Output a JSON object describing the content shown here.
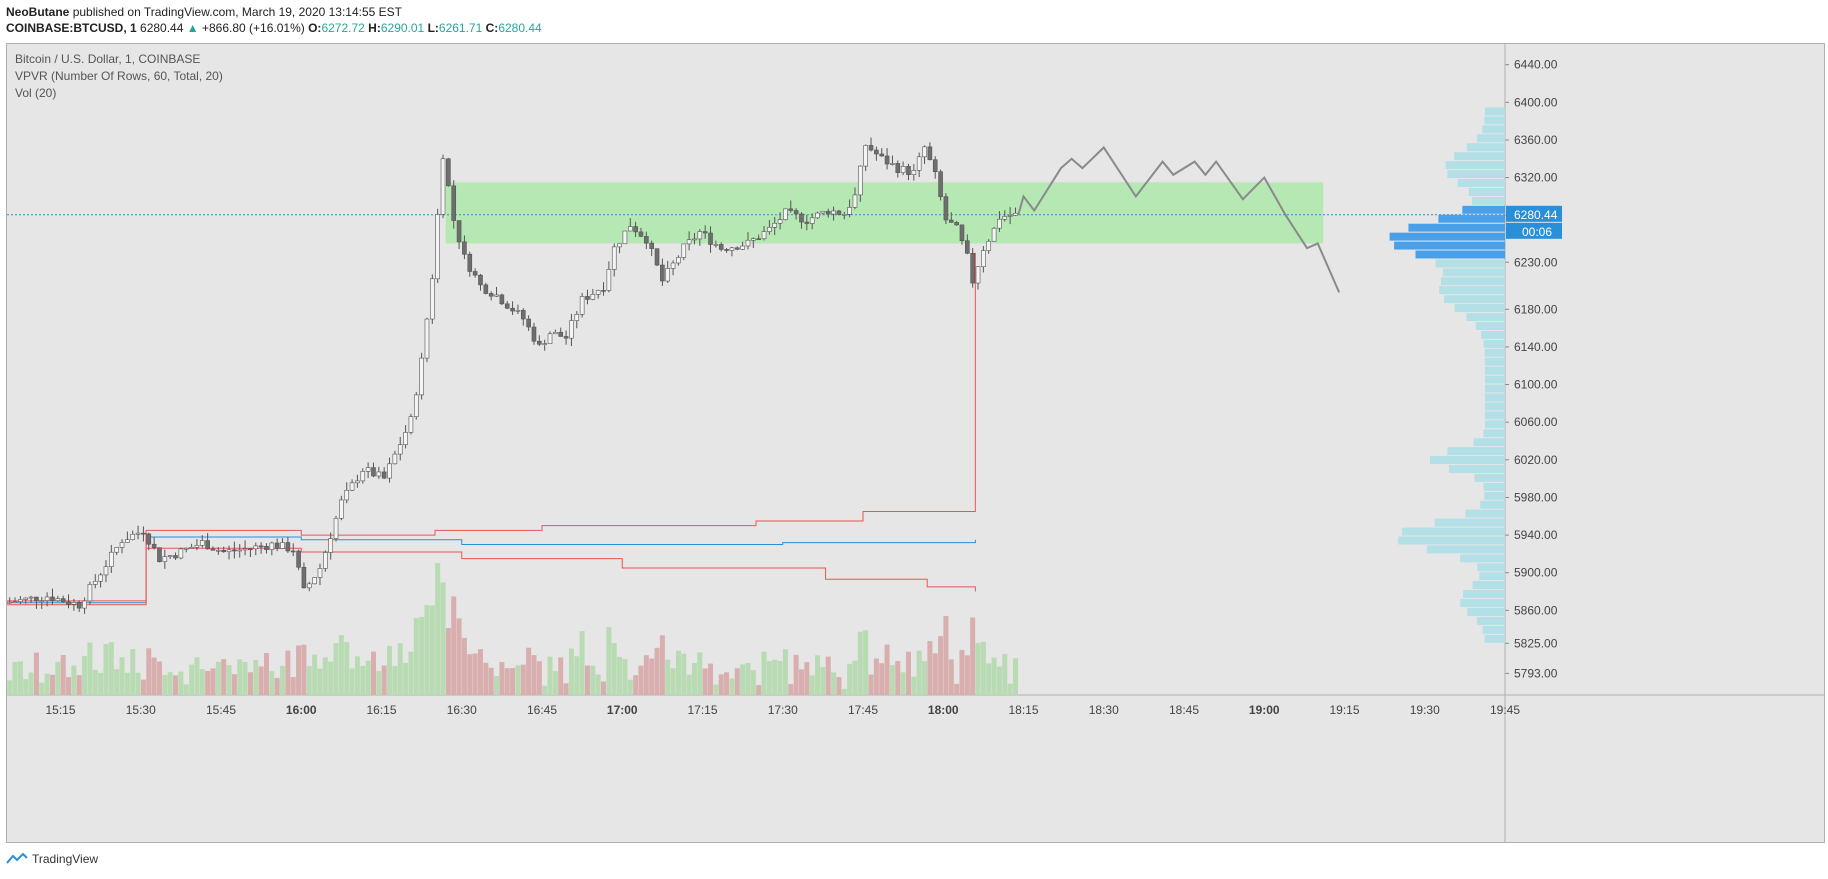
{
  "header": {
    "author": "NeoButane",
    "published_text": "published on TradingView.com, March 19, 2020 13:14:55 EST",
    "symbol": "COINBASE:BTCUSD, 1",
    "last": "6280.44",
    "change": "+866.80 (+16.01%)",
    "o_label": "O:",
    "o": "6272.72",
    "h_label": "H:",
    "h": "6290.01",
    "l_label": "L:",
    "l": "6261.71",
    "c_label": "C:",
    "c": "6280.44"
  },
  "legend": {
    "title": "Bitcoin / U.S. Dollar, 1, COINBASE",
    "indicator1": "VPVR (Number Of Rows, 60, Total, 20)",
    "indicator2": "Vol (20)"
  },
  "badges": {
    "price": "6280.44",
    "countdown": "00:06"
  },
  "footer": {
    "brand": "TradingView"
  },
  "colors": {
    "zone": "#b6e8b4",
    "path": "#8a8a8a",
    "vpvr": "#b3dfe7",
    "vpvr_hi": "#4aa0e8",
    "vol_up": "#b9dbb3",
    "vol_dn": "#d9aeae",
    "vwap": "#2a8fd9",
    "band": "#ef5353",
    "price_line": "#2a8fd9"
  },
  "chart_data": {
    "type": "candlestick",
    "title": "Bitcoin / U.S. Dollar, 1, COINBASE",
    "ylim": [
      5770,
      6462
    ],
    "y_ticks": [
      "6440.00",
      "6400.00",
      "6360.00",
      "6320.00",
      "6280.00",
      "6230.00",
      "6180.00",
      "6140.00",
      "6100.00",
      "6060.00",
      "6020.00",
      "5980.00",
      "5940.00",
      "5900.00",
      "5860.00",
      "5825.00",
      "5793.00"
    ],
    "x_ticks": [
      "15:15",
      "15:30",
      "15:45",
      "16:00",
      "16:15",
      "16:30",
      "16:45",
      "17:00",
      "17:15",
      "17:30",
      "17:45",
      "18:00",
      "18:15",
      "18:30",
      "18:45",
      "19:00",
      "19:15",
      "19:30",
      "19:45"
    ],
    "x_ticks_bold": [
      "16:00",
      "17:00",
      "18:00",
      "19:00"
    ],
    "time_start": "15:05",
    "time_end": "19:45",
    "last_price": 6280.44,
    "resistance_zone": {
      "from_time": "16:27",
      "to_time": "19:11",
      "low": 6250,
      "high": 6315
    },
    "projection_path": [
      [
        "18:14",
        6280
      ],
      [
        "18:15",
        6300
      ],
      [
        "18:17",
        6285
      ],
      [
        "18:22",
        6330
      ],
      [
        "18:24",
        6340
      ],
      [
        "18:26",
        6330
      ],
      [
        "18:30",
        6352
      ],
      [
        "18:36",
        6300
      ],
      [
        "18:41",
        6337
      ],
      [
        "18:43",
        6323
      ],
      [
        "18:47",
        6337
      ],
      [
        "18:49",
        6323
      ],
      [
        "18:51",
        6337
      ],
      [
        "18:56",
        6297
      ],
      [
        "19:00",
        6320
      ],
      [
        "19:04",
        6280
      ],
      [
        "19:08",
        6245
      ],
      [
        "19:10",
        6250
      ],
      [
        "19:14",
        6198
      ]
    ],
    "candle_waypoints": [
      [
        "15:05",
        5868
      ],
      [
        "15:13",
        5875
      ],
      [
        "15:19",
        5866
      ],
      [
        "15:23",
        5900
      ],
      [
        "15:27",
        5935
      ],
      [
        "15:31",
        5945
      ],
      [
        "15:34",
        5915
      ],
      [
        "15:37",
        5920
      ],
      [
        "15:42",
        5932
      ],
      [
        "15:46",
        5922
      ],
      [
        "15:50",
        5925
      ],
      [
        "15:55",
        5930
      ],
      [
        "15:59",
        5925
      ],
      [
        "16:01",
        5880
      ],
      [
        "16:04",
        5905
      ],
      [
        "16:08",
        5975
      ],
      [
        "16:12",
        6010
      ],
      [
        "16:16",
        6000
      ],
      [
        "16:18",
        6025
      ],
      [
        "16:21",
        6062
      ],
      [
        "16:23",
        6125
      ],
      [
        "16:25",
        6215
      ],
      [
        "16:27",
        6345
      ],
      [
        "16:29",
        6275
      ],
      [
        "16:31",
        6235
      ],
      [
        "16:34",
        6205
      ],
      [
        "16:37",
        6195
      ],
      [
        "16:42",
        6170
      ],
      [
        "16:45",
        6140
      ],
      [
        "16:47",
        6155
      ],
      [
        "16:50",
        6150
      ],
      [
        "16:53",
        6190
      ],
      [
        "16:57",
        6205
      ],
      [
        "16:59",
        6245
      ],
      [
        "17:02",
        6270
      ],
      [
        "17:05",
        6255
      ],
      [
        "17:08",
        6210
      ],
      [
        "17:12",
        6245
      ],
      [
        "17:15",
        6262
      ],
      [
        "17:19",
        6245
      ],
      [
        "17:24",
        6250
      ],
      [
        "17:28",
        6265
      ],
      [
        "17:31",
        6282
      ],
      [
        "17:35",
        6275
      ],
      [
        "17:39",
        6285
      ],
      [
        "17:42",
        6282
      ],
      [
        "17:44",
        6300
      ],
      [
        "17:46",
        6355
      ],
      [
        "17:49",
        6340
      ],
      [
        "17:52",
        6330
      ],
      [
        "17:55",
        6325
      ],
      [
        "17:57",
        6352
      ],
      [
        "17:59",
        6322
      ],
      [
        "18:01",
        6275
      ],
      [
        "18:03",
        6265
      ],
      [
        "18:05",
        6235
      ],
      [
        "18:06",
        6210
      ],
      [
        "18:08",
        6245
      ],
      [
        "18:10",
        6265
      ],
      [
        "18:11",
        6278
      ],
      [
        "18:13",
        6280
      ]
    ],
    "volume_profile_note": "VPVR histogram, 60 rows, Total, highlighted value area near 6235-6285"
  }
}
